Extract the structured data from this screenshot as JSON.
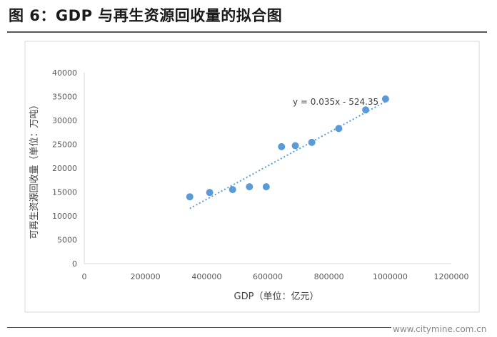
{
  "figure_title": "图 6：GDP 与再生资源回收量的拟合图",
  "watermark": "www.citymine.com.cn",
  "chart_data": {
    "type": "scatter",
    "title": "",
    "xlabel": "GDP（单位：亿元）",
    "ylabel": "可再生资源回收量（单位：万吨）",
    "xlim": [
      0,
      1200000
    ],
    "ylim": [
      0,
      40000
    ],
    "x_ticks": [
      0,
      200000,
      400000,
      600000,
      800000,
      1000000,
      1200000
    ],
    "y_ticks": [
      0,
      5000,
      10000,
      15000,
      20000,
      25000,
      30000,
      35000,
      40000
    ],
    "points": [
      {
        "x": 345000,
        "y": 14000
      },
      {
        "x": 410000,
        "y": 14900
      },
      {
        "x": 485000,
        "y": 15500
      },
      {
        "x": 540000,
        "y": 16100
      },
      {
        "x": 595000,
        "y": 16100
      },
      {
        "x": 645000,
        "y": 24500
      },
      {
        "x": 690000,
        "y": 24700
      },
      {
        "x": 744000,
        "y": 25400
      },
      {
        "x": 832000,
        "y": 28300
      },
      {
        "x": 920000,
        "y": 32200
      },
      {
        "x": 985000,
        "y": 34500
      }
    ],
    "trendline": {
      "equation": "y = 0.035x - 524.35",
      "slope": 0.035,
      "intercept": -524.35,
      "x_range": [
        345000,
        990000
      ],
      "style": "dotted",
      "color": "#5b9bd5"
    },
    "marker_color": "#5b9bd5",
    "axis_color": "#d9d9d9",
    "grid": false
  }
}
